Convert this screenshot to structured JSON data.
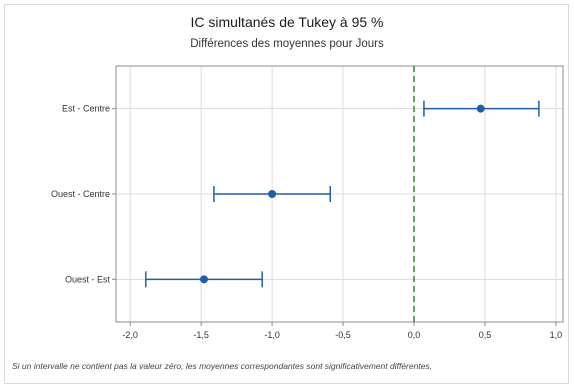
{
  "chart_data": {
    "type": "interval",
    "title": "IC simultanés de Tukey à 95 %",
    "subtitle": "Différences des moyennes pour Jours",
    "categories": [
      "Est - Centre",
      "Ouest - Centre",
      "Ouest - Est"
    ],
    "estimates": [
      0.47,
      -1.0,
      -1.48
    ],
    "lower": [
      0.07,
      -1.41,
      -1.89
    ],
    "upper": [
      0.88,
      -0.59,
      -1.07
    ],
    "xlim": [
      -2.1,
      1.05
    ],
    "x_ticks": [
      "-2,0",
      "-1,5",
      "-1,0",
      "-0,5",
      "0,0",
      "0,5",
      "1,0"
    ],
    "x_tick_values": [
      -2.0,
      -1.5,
      -1.0,
      -0.5,
      0.0,
      0.5,
      1.0
    ],
    "reference_line": 0,
    "grid": true,
    "footnote": "Si un intervalle ne contient pas la valeur zéro, les moyennes correspondantes sont significativement différentes.",
    "colors": {
      "interval": "#1f5fa8",
      "reference": "#2e8b2e",
      "grid": "#dcdcdc",
      "axis": "#8c8c8c"
    }
  }
}
